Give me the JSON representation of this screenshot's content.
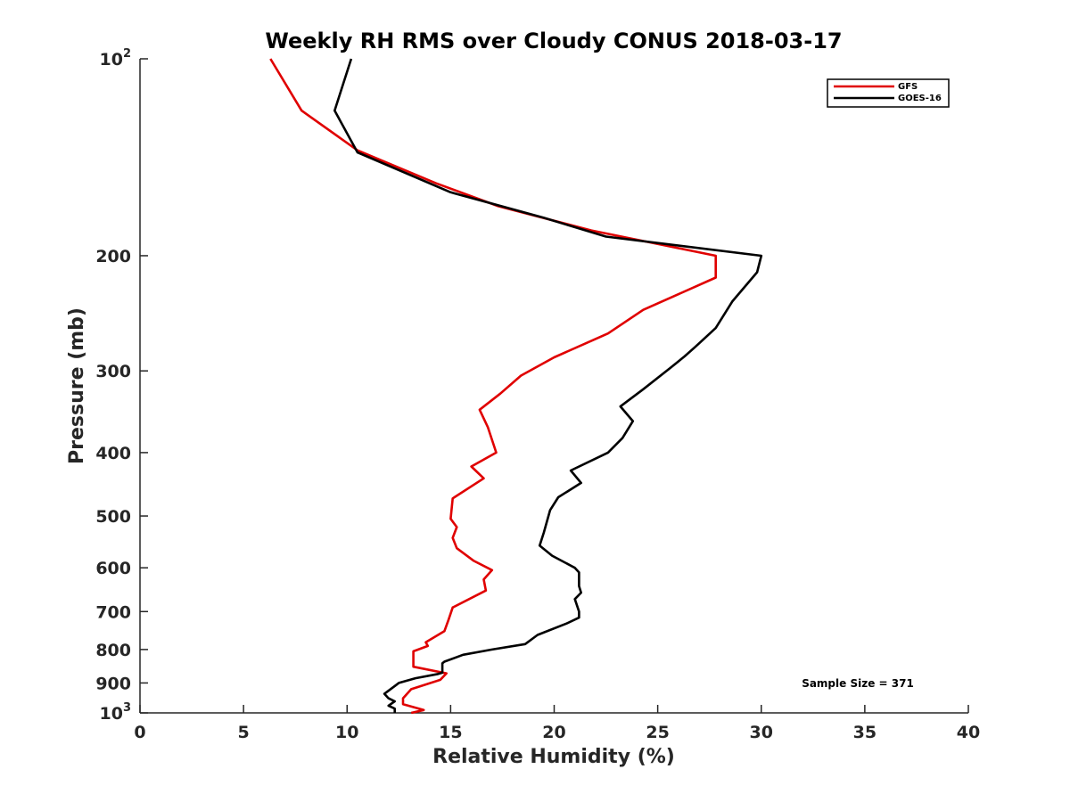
{
  "chart_data": {
    "type": "line",
    "title": "Weekly RH RMS over Cloudy CONUS 2018-03-17",
    "xlabel": "Relative Humidity (%)",
    "ylabel": "Pressure (mb)",
    "xlim": [
      0,
      40
    ],
    "ylim": [
      100,
      1000
    ],
    "y_scale": "log",
    "y_reversed": true,
    "grid": false,
    "legend_position": "top-right",
    "x_ticks": [
      "0",
      "5",
      "10",
      "15",
      "20",
      "25",
      "30",
      "35",
      "40"
    ],
    "y_ticks": [
      {
        "value": 100,
        "label": "10",
        "sup": "2"
      },
      {
        "value": 200,
        "label": "200"
      },
      {
        "value": 300,
        "label": "300"
      },
      {
        "value": 400,
        "label": "400"
      },
      {
        "value": 500,
        "label": "500"
      },
      {
        "value": 600,
        "label": "600"
      },
      {
        "value": 700,
        "label": "700"
      },
      {
        "value": 800,
        "label": "800"
      },
      {
        "value": 900,
        "label": "900"
      },
      {
        "value": 1000,
        "label": "10",
        "sup": "3"
      }
    ],
    "series": [
      {
        "name": "GFS",
        "color": "#e00000",
        "points": [
          [
            6.3,
            100
          ],
          [
            7.8,
            120
          ],
          [
            10.5,
            138
          ],
          [
            14.3,
            155
          ],
          [
            17.3,
            168
          ],
          [
            21.8,
            183
          ],
          [
            27.8,
            200
          ],
          [
            27.8,
            216
          ],
          [
            24.3,
            242
          ],
          [
            22.6,
            263
          ],
          [
            20.0,
            286
          ],
          [
            18.4,
            305
          ],
          [
            17.4,
            325
          ],
          [
            16.4,
            344
          ],
          [
            16.8,
            366
          ],
          [
            17.2,
            400
          ],
          [
            16.0,
            420
          ],
          [
            16.6,
            438
          ],
          [
            15.1,
            470
          ],
          [
            15.0,
            505
          ],
          [
            15.3,
            520
          ],
          [
            15.1,
            540
          ],
          [
            15.3,
            560
          ],
          [
            16.1,
            585
          ],
          [
            17.0,
            605
          ],
          [
            16.6,
            625
          ],
          [
            16.7,
            650
          ],
          [
            15.1,
            690
          ],
          [
            14.9,
            720
          ],
          [
            14.7,
            750
          ],
          [
            13.8,
            780
          ],
          [
            13.9,
            790
          ],
          [
            13.2,
            805
          ],
          [
            13.2,
            850
          ],
          [
            14.8,
            870
          ],
          [
            14.5,
            890
          ],
          [
            13.1,
            920
          ],
          [
            12.7,
            950
          ],
          [
            12.7,
            970
          ],
          [
            13.7,
            990
          ],
          [
            13.1,
            1000
          ]
        ]
      },
      {
        "name": "GOES-16",
        "color": "#000000",
        "points": [
          [
            10.2,
            100
          ],
          [
            9.4,
            120
          ],
          [
            10.5,
            139
          ],
          [
            15.0,
            160
          ],
          [
            19.5,
            175
          ],
          [
            22.5,
            187
          ],
          [
            30.0,
            200
          ],
          [
            29.8,
            212
          ],
          [
            28.6,
            235
          ],
          [
            27.8,
            258
          ],
          [
            26.8,
            276
          ],
          [
            26.3,
            285
          ],
          [
            25.6,
            297
          ],
          [
            24.3,
            320
          ],
          [
            23.2,
            340
          ],
          [
            23.8,
            358
          ],
          [
            23.3,
            380
          ],
          [
            22.6,
            400
          ],
          [
            20.8,
            426
          ],
          [
            21.3,
            445
          ],
          [
            20.2,
            468
          ],
          [
            19.8,
            490
          ],
          [
            19.5,
            530
          ],
          [
            19.3,
            555
          ],
          [
            19.9,
            575
          ],
          [
            21.0,
            600
          ],
          [
            21.2,
            610
          ],
          [
            21.2,
            640
          ],
          [
            21.3,
            655
          ],
          [
            21.0,
            670
          ],
          [
            21.2,
            700
          ],
          [
            21.2,
            715
          ],
          [
            20.6,
            730
          ],
          [
            19.2,
            760
          ],
          [
            18.6,
            785
          ],
          [
            17.0,
            800
          ],
          [
            15.6,
            815
          ],
          [
            14.7,
            835
          ],
          [
            14.6,
            840
          ],
          [
            14.6,
            868
          ],
          [
            14.4,
            872
          ],
          [
            13.3,
            885
          ],
          [
            12.5,
            900
          ],
          [
            12.4,
            905
          ],
          [
            11.8,
            935
          ],
          [
            12.0,
            950
          ],
          [
            12.3,
            960
          ],
          [
            12.0,
            975
          ],
          [
            12.3,
            985
          ],
          [
            12.3,
            1000
          ]
        ]
      }
    ],
    "annotation": "Sample Size = 371"
  }
}
